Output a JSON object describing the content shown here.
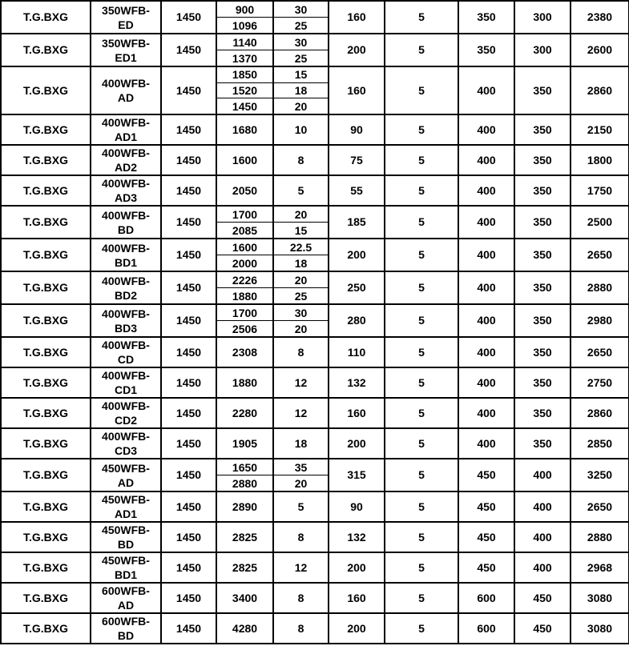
{
  "rows": [
    {
      "brand": "T.G.BXG",
      "model": "350WFB-ED",
      "speed": "1450",
      "flow_head": [
        [
          "900",
          "30"
        ],
        [
          "1096",
          "25"
        ]
      ],
      "power": "160",
      "c6": "5",
      "c7": "350",
      "c8": "300",
      "c9": "2380"
    },
    {
      "brand": "T.G.BXG",
      "model": "350WFB-ED1",
      "speed": "1450",
      "flow_head": [
        [
          "1140",
          "30"
        ],
        [
          "1370",
          "25"
        ]
      ],
      "power": "200",
      "c6": "5",
      "c7": "350",
      "c8": "300",
      "c9": "2600"
    },
    {
      "brand": "T.G.BXG",
      "model": "400WFB-AD",
      "speed": "1450",
      "flow_head": [
        [
          "1850",
          "15"
        ],
        [
          "1520",
          "18"
        ],
        [
          "1450",
          "20"
        ]
      ],
      "power": "160",
      "c6": "5",
      "c7": "400",
      "c8": "350",
      "c9": "2860"
    },
    {
      "brand": "T.G.BXG",
      "model": "400WFB-AD1",
      "speed": "1450",
      "flow_head": [
        [
          "1680",
          "10"
        ]
      ],
      "power": "90",
      "c6": "5",
      "c7": "400",
      "c8": "350",
      "c9": "2150"
    },
    {
      "brand": "T.G.BXG",
      "model": "400WFB-AD2",
      "speed": "1450",
      "flow_head": [
        [
          "1600",
          "8"
        ]
      ],
      "power": "75",
      "c6": "5",
      "c7": "400",
      "c8": "350",
      "c9": "1800"
    },
    {
      "brand": "T.G.BXG",
      "model": "400WFB-AD3",
      "speed": "1450",
      "flow_head": [
        [
          "2050",
          "5"
        ]
      ],
      "power": "55",
      "c6": "5",
      "c7": "400",
      "c8": "350",
      "c9": "1750"
    },
    {
      "brand": "T.G.BXG",
      "model": "400WFB-BD",
      "speed": "1450",
      "flow_head": [
        [
          "1700",
          "20"
        ],
        [
          "2085",
          "15"
        ]
      ],
      "power": "185",
      "c6": "5",
      "c7": "400",
      "c8": "350",
      "c9": "2500"
    },
    {
      "brand": "T.G.BXG",
      "model": "400WFB-BD1",
      "speed": "1450",
      "flow_head": [
        [
          "1600",
          "22.5"
        ],
        [
          "2000",
          "18"
        ]
      ],
      "power": "200",
      "c6": "5",
      "c7": "400",
      "c8": "350",
      "c9": "2650"
    },
    {
      "brand": "T.G.BXG",
      "model": "400WFB-BD2",
      "speed": "1450",
      "flow_head": [
        [
          "2226",
          "20"
        ],
        [
          "1880",
          "25"
        ]
      ],
      "power": "250",
      "c6": "5",
      "c7": "400",
      "c8": "350",
      "c9": "2880"
    },
    {
      "brand": "T.G.BXG",
      "model": "400WFB-BD3",
      "speed": "1450",
      "flow_head": [
        [
          "1700",
          "30"
        ],
        [
          "2506",
          "20"
        ]
      ],
      "power": "280",
      "c6": "5",
      "c7": "400",
      "c8": "350",
      "c9": "2980"
    },
    {
      "brand": "T.G.BXG",
      "model": "400WFB-CD",
      "speed": "1450",
      "flow_head": [
        [
          "2308",
          "8"
        ]
      ],
      "power": "110",
      "c6": "5",
      "c7": "400",
      "c8": "350",
      "c9": "2650"
    },
    {
      "brand": "T.G.BXG",
      "model": "400WFB-CD1",
      "speed": "1450",
      "flow_head": [
        [
          "1880",
          "12"
        ]
      ],
      "power": "132",
      "c6": "5",
      "c7": "400",
      "c8": "350",
      "c9": "2750"
    },
    {
      "brand": "T.G.BXG",
      "model": "400WFB-CD2",
      "speed": "1450",
      "flow_head": [
        [
          "2280",
          "12"
        ]
      ],
      "power": "160",
      "c6": "5",
      "c7": "400",
      "c8": "350",
      "c9": "2860"
    },
    {
      "brand": "T.G.BXG",
      "model": "400WFB-CD3",
      "speed": "1450",
      "flow_head": [
        [
          "1905",
          "18"
        ]
      ],
      "power": "200",
      "c6": "5",
      "c7": "400",
      "c8": "350",
      "c9": "2850"
    },
    {
      "brand": "T.G.BXG",
      "model": "450WFB-AD",
      "speed": "1450",
      "flow_head": [
        [
          "1650",
          "35"
        ],
        [
          "2880",
          "20"
        ]
      ],
      "power": "315",
      "c6": "5",
      "c7": "450",
      "c8": "400",
      "c9": "3250"
    },
    {
      "brand": "T.G.BXG",
      "model": "450WFB-AD1",
      "speed": "1450",
      "flow_head": [
        [
          "2890",
          "5"
        ]
      ],
      "power": "90",
      "c6": "5",
      "c7": "450",
      "c8": "400",
      "c9": "2650"
    },
    {
      "brand": "T.G.BXG",
      "model": "450WFB-BD",
      "speed": "1450",
      "flow_head": [
        [
          "2825",
          "8"
        ]
      ],
      "power": "132",
      "c6": "5",
      "c7": "450",
      "c8": "400",
      "c9": "2880"
    },
    {
      "brand": "T.G.BXG",
      "model": "450WFB-BD1",
      "speed": "1450",
      "flow_head": [
        [
          "2825",
          "12"
        ]
      ],
      "power": "200",
      "c6": "5",
      "c7": "450",
      "c8": "400",
      "c9": "2968"
    },
    {
      "brand": "T.G.BXG",
      "model": "600WFB-AD",
      "speed": "1450",
      "flow_head": [
        [
          "3400",
          "8"
        ]
      ],
      "power": "160",
      "c6": "5",
      "c7": "600",
      "c8": "450",
      "c9": "3080"
    },
    {
      "brand": "T.G.BXG",
      "model": "600WFB-BD",
      "speed": "1450",
      "flow_head": [
        [
          "4280",
          "8"
        ]
      ],
      "power": "200",
      "c6": "5",
      "c7": "600",
      "c8": "450",
      "c9": "3080"
    }
  ]
}
